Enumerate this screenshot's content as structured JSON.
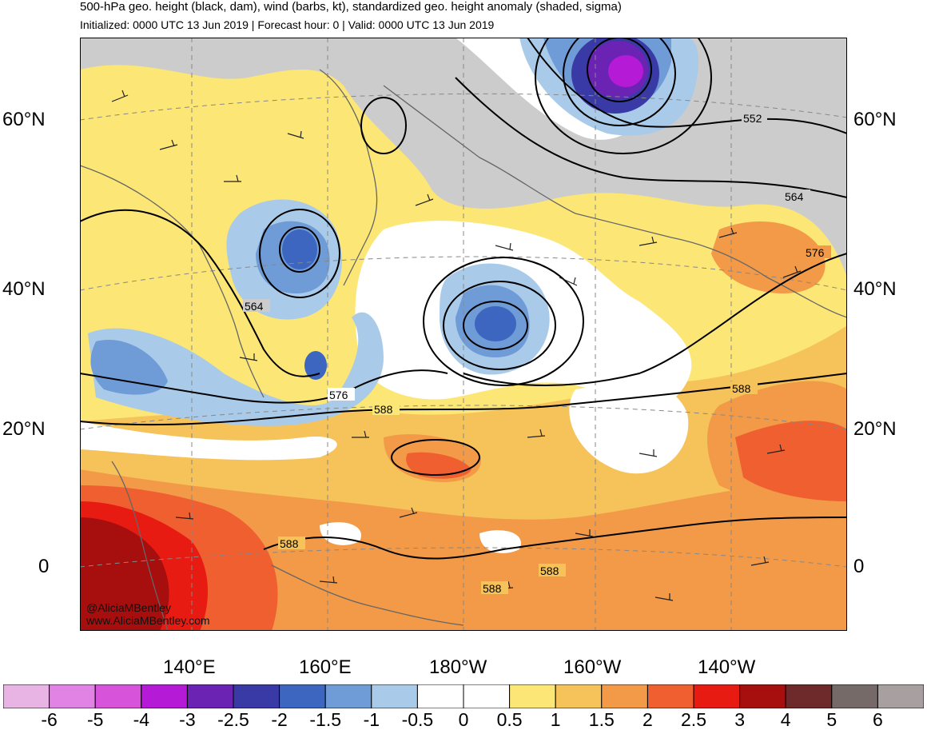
{
  "header": {
    "title": "500-hPa geo. height (black, dam), wind (barbs, kt), standardized geo. height anomaly (shaded, sigma)",
    "subtitle": "Initialized: 0000 UTC 13 Jun 2019 | Forecast hour: 0 | Valid: 0000 UTC 13 Jun 2019"
  },
  "map": {
    "lat_labels": [
      "60°N",
      "40°N",
      "20°N",
      "0"
    ],
    "lon_labels": [
      "140°E",
      "160°E",
      "180°W",
      "160°W",
      "140°W"
    ],
    "contour_labels": [
      "552",
      "564",
      "564",
      "576",
      "576",
      "588",
      "588",
      "588",
      "588",
      "588"
    ],
    "credit": [
      "@AliciaMBentley",
      "www.AliciaMBentley.com"
    ]
  },
  "colorbar": {
    "ticks": [
      "-6",
      "-5",
      "-4",
      "-3",
      "-2.5",
      "-2",
      "-1.5",
      "-1",
      "-0.5",
      "0",
      "0.5",
      "1",
      "1.5",
      "2",
      "2.5",
      "3",
      "4",
      "5",
      "6"
    ],
    "colors": [
      "#e8b4e4",
      "#e183e4",
      "#d653da",
      "#b51bd6",
      "#6b23b4",
      "#3a3aa6",
      "#3c66bf",
      "#6f9bd6",
      "#a9cbe9",
      "#ffffff",
      "#ffffff",
      "#fbe676",
      "#f6c25a",
      "#f29a47",
      "#ef5f30",
      "#e81b13",
      "#a70e0e",
      "#6e2a2a",
      "#756a67",
      "#a8a0a0"
    ]
  },
  "legend_colors": {
    "gray_land_bg": "#cccccc",
    "ocean_bg": "#f2c75e"
  }
}
